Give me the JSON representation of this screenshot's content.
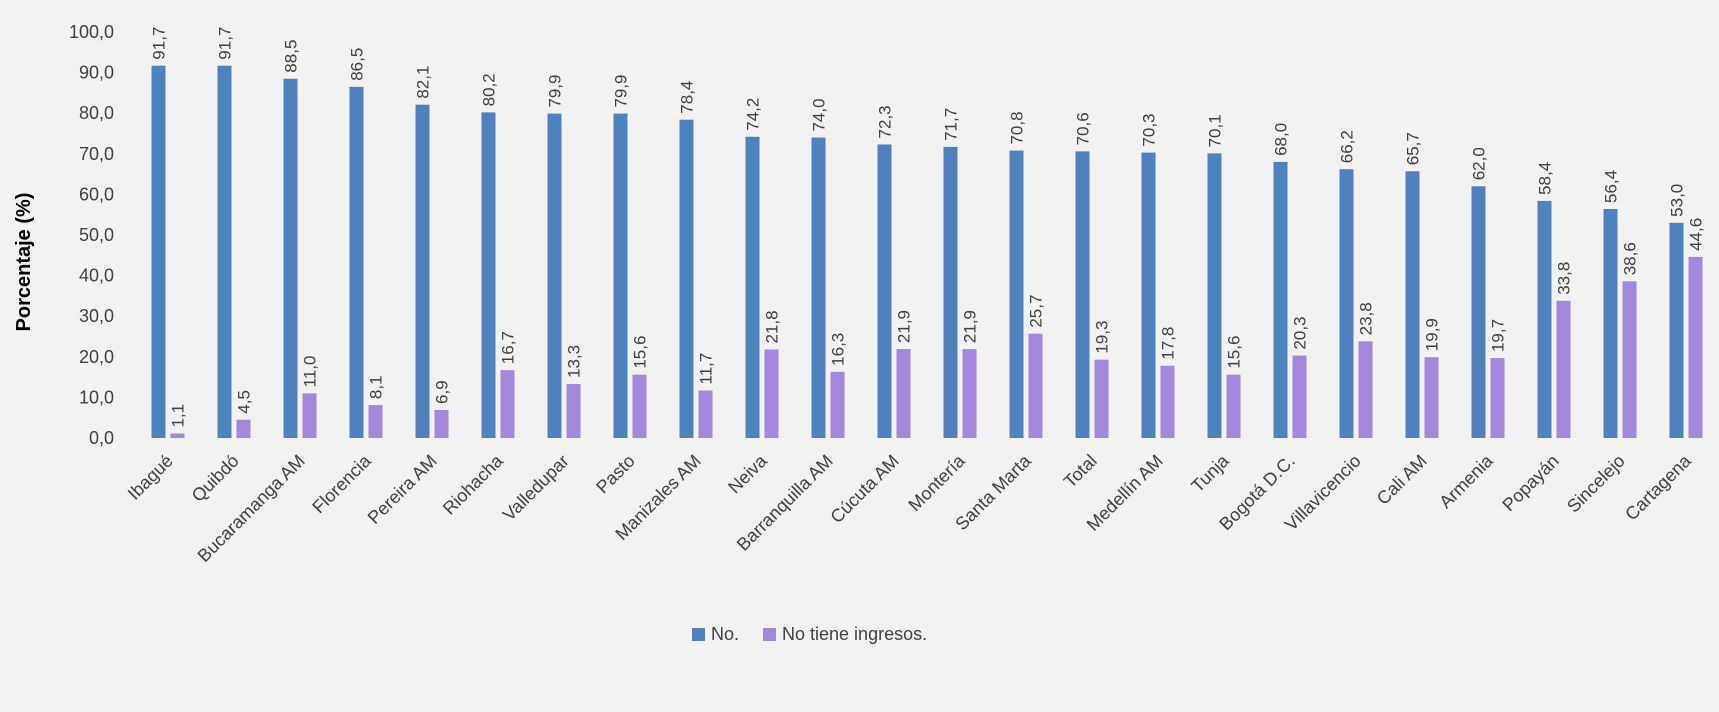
{
  "chart_data": {
    "type": "bar",
    "title": "",
    "xlabel": "",
    "ylabel": "Porcentaje (%)",
    "ylim": [
      0,
      100
    ],
    "ytick_step": 10,
    "grid": false,
    "legend_position": "bottom",
    "categories": [
      "Ibagué",
      "Quibdó",
      "Bucaramanga AM",
      "Florencia",
      "Pereira AM",
      "Riohacha",
      "Valledupar",
      "Pasto",
      "Manizales AM",
      "Neiva",
      "Barranquilla AM",
      "Cúcuta AM",
      "Montería",
      "Santa Marta",
      "Total",
      "Medellín AM",
      "Tunja",
      "Bogotá D.C.",
      "Villavicencio",
      "Cali AM",
      "Armenia",
      "Popayán",
      "Sincelejo",
      "Cartagena"
    ],
    "series": [
      {
        "name": "No.",
        "color": "#4f81bd",
        "values": [
          91.7,
          91.7,
          88.5,
          86.5,
          82.1,
          80.2,
          79.9,
          79.9,
          78.4,
          74.2,
          74.0,
          72.3,
          71.7,
          70.8,
          70.6,
          70.3,
          70.1,
          68.0,
          66.2,
          65.7,
          62.0,
          58.4,
          56.4,
          53.0
        ]
      },
      {
        "name": "No tiene ingresos.",
        "color": "#a287dc",
        "values": [
          1.1,
          4.5,
          11.0,
          8.1,
          6.9,
          16.7,
          13.3,
          15.6,
          11.7,
          21.8,
          16.3,
          21.9,
          21.9,
          25.7,
          19.3,
          17.8,
          15.6,
          20.3,
          23.8,
          19.9,
          19.7,
          33.8,
          38.6,
          44.6
        ]
      }
    ]
  }
}
